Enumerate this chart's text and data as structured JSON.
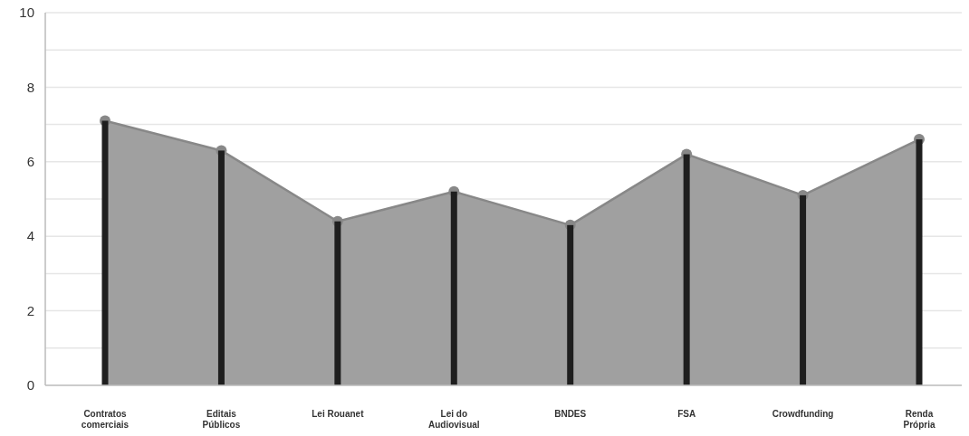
{
  "chart_data": {
    "type": "area",
    "categories": [
      "Contratos comerciais",
      "Editais Públicos",
      "Lei Rouanet",
      "Lei do Audiovisual",
      "BNDES",
      "FSA",
      "Crowdfunding",
      "Renda Própria"
    ],
    "series": [
      {
        "type": "bar",
        "color": "#1e1e1e",
        "values": [
          7.1,
          6.3,
          4.4,
          5.2,
          4.3,
          6.2,
          5.1,
          6.6
        ]
      },
      {
        "color": "#a0a0a0",
        "values": [
          7.1,
          6.3,
          4.4,
          5.2,
          4.3,
          6.2,
          5.1,
          6.6
        ]
      }
    ],
    "ylim": [
      0,
      10
    ],
    "yticks": [
      0,
      {
        "value": 1,
        "label": null
      },
      2,
      {
        "value": 3,
        "label": null
      },
      4,
      {
        "value": 5,
        "label": null
      },
      6,
      {
        "value": 7,
        "label": null
      },
      8,
      {
        "value": 9,
        "label": null
      },
      10
    ],
    "grid": "y",
    "marker": "circle"
  }
}
